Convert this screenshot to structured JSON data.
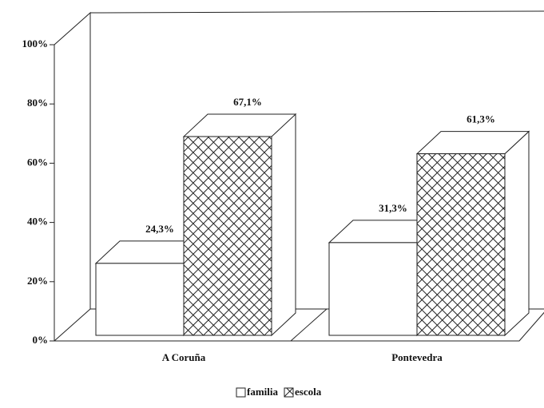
{
  "chart_data": {
    "type": "bar3d",
    "categories": [
      "A Coruña",
      "Pontevedra"
    ],
    "series": [
      {
        "name": "familia",
        "color": "#ffffff",
        "pattern": "none",
        "values": [
          24.3,
          31.3
        ],
        "value_labels": [
          "24,3%",
          "31,3%"
        ]
      },
      {
        "name": "escola",
        "color": "#ffffff",
        "pattern": "hatch",
        "values": [
          67.1,
          61.3
        ],
        "value_labels": [
          "67,1%",
          "61,3%"
        ]
      }
    ],
    "ylim": [
      0,
      100
    ],
    "yticks": [
      {
        "value": 0,
        "label": "0%"
      },
      {
        "value": 20,
        "label": "20%"
      },
      {
        "value": 40,
        "label": "40%"
      },
      {
        "value": 60,
        "label": "60%"
      },
      {
        "value": 80,
        "label": "80%"
      },
      {
        "value": 100,
        "label": "100%"
      }
    ],
    "legend": "bottom"
  }
}
